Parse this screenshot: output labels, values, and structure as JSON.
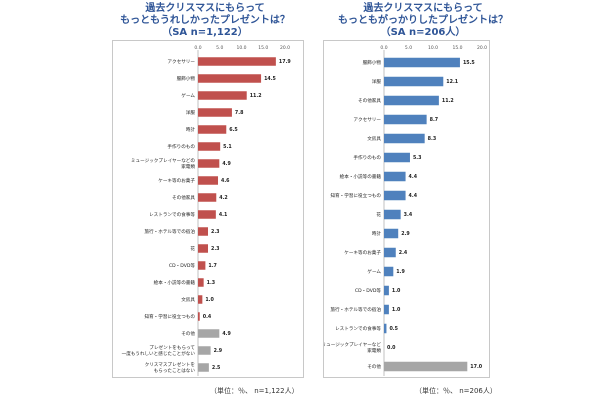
{
  "charts": [
    {
      "title_line1": "過去クリスマスにもらって",
      "title_line2": "もっともうれしかったプレゼントは？",
      "subtitle": "（SA n=1,122）",
      "footnote": "（単位：％、 n=1,122人）"
    },
    {
      "title_line1": "過去クリスマスにもらって",
      "title_line2": "もっともがっかりしたプレゼントは？",
      "subtitle": "（SA n=206人）",
      "footnote": "（単位：％、 n=206人）"
    }
  ],
  "colors": {
    "red": "#c0504d",
    "blue": "#4f81bd",
    "gray": "#a6a6a6",
    "title": "#2f5597"
  },
  "chart_data": [
    {
      "type": "bar",
      "orientation": "horizontal",
      "xlim": [
        0,
        20
      ],
      "xticks": [
        "0.0",
        "5.0",
        "10.0",
        "15.0",
        "20.0"
      ],
      "categories": [
        "アクセサリー",
        "服飾小物",
        "ゲーム",
        "洋服",
        "時計",
        "手作りのもの",
        "ミュージックプレイヤーなどの\n家電類",
        "ケーキ等のお菓子",
        "その他家具",
        "レストランでの食事等",
        "旅行・ホテル等での宿泊",
        "花",
        "CD・DVD等",
        "絵本・小説等の書籍",
        "文房具",
        "知育・学習に役立つもの",
        "その他",
        "プレゼントをもらって\n一度もうれしいと感じたことがない",
        "クリスマスプレゼントを\nもらったことはない"
      ],
      "values": [
        17.9,
        14.5,
        11.2,
        7.8,
        6.5,
        5.1,
        4.9,
        4.6,
        4.2,
        4.1,
        2.3,
        2.3,
        1.7,
        1.3,
        1.0,
        0.4,
        4.9,
        2.9,
        2.5
      ],
      "value_labels": [
        "17.9",
        "14.5",
        "11.2",
        "7.8",
        "6.5",
        "5.1",
        "4.9",
        "4.6",
        "4.2",
        "4.1",
        "2.3",
        "2.3",
        "1.7",
        "1.3",
        "1.0",
        "0.4",
        "4.9",
        "2.9",
        "2.5"
      ],
      "bar_colors": [
        "red",
        "red",
        "red",
        "red",
        "red",
        "red",
        "red",
        "red",
        "red",
        "red",
        "red",
        "red",
        "red",
        "red",
        "red",
        "red",
        "gray",
        "gray",
        "gray"
      ]
    },
    {
      "type": "bar",
      "orientation": "horizontal",
      "xlim": [
        0,
        20
      ],
      "xticks": [
        "0.0",
        "5.0",
        "10.0",
        "15.0",
        "20.0"
      ],
      "categories": [
        "服飾小物",
        "洋服",
        "その他家具",
        "アクセサリー",
        "文房具",
        "手作りのもの",
        "絵本・小説等の書籍",
        "知育・学習に役立つもの",
        "花",
        "時計",
        "ケーキ等のお菓子",
        "ゲーム",
        "CD・DVD等",
        "旅行・ホテル等での宿泊",
        "レストランでの食事等",
        "ミュージックプレイヤーなど\n家電類",
        "その他"
      ],
      "values": [
        15.5,
        12.1,
        11.2,
        8.7,
        8.3,
        5.3,
        4.4,
        4.4,
        3.4,
        2.9,
        2.4,
        1.9,
        1.0,
        1.0,
        0.5,
        0.0,
        17.0
      ],
      "value_labels": [
        "15.5",
        "12.1",
        "11.2",
        "8.7",
        "8.3",
        "5.3",
        "4.4",
        "4.4",
        "3.4",
        "2.9",
        "2.4",
        "1.9",
        "1.0",
        "1.0",
        "0.5",
        "0.0",
        "17.0"
      ],
      "bar_colors": [
        "blue",
        "blue",
        "blue",
        "blue",
        "blue",
        "blue",
        "blue",
        "blue",
        "blue",
        "blue",
        "blue",
        "blue",
        "blue",
        "blue",
        "blue",
        "blue",
        "gray"
      ]
    }
  ]
}
